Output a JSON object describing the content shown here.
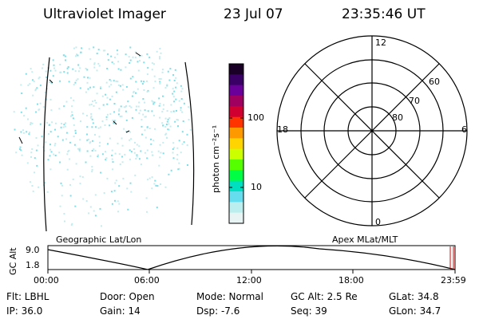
{
  "header": {
    "instrument": "Ultraviolet Imager",
    "date": "23 Jul 07",
    "time": "23:35:46 UT"
  },
  "colorbar": {
    "unit_label": "photon cm⁻²s⁻¹",
    "ticks": [
      "100",
      "10"
    ],
    "colors": [
      "#1a0026",
      "#3a0066",
      "#6a0099",
      "#a00060",
      "#d00030",
      "#ff3300",
      "#ff9900",
      "#ffd400",
      "#ccff00",
      "#55ff00",
      "#00ff44",
      "#00e0c0",
      "#66ddee",
      "#bbeeee",
      "#e8f4f4"
    ]
  },
  "polar": {
    "hour_labels": {
      "top": "12",
      "left": "18",
      "right": "6",
      "bottom": "0"
    },
    "lat_labels": [
      "60",
      "70",
      "80"
    ]
  },
  "altitude_plot": {
    "y_label": "GC Alt",
    "y_ticks": [
      "9.0",
      "1.8"
    ],
    "left_title": "Geographic Lat/Lon",
    "right_title": "Apex  MLat/MLT",
    "x_ticks": [
      "00:00",
      "06:00",
      "12:00",
      "18:00",
      "23:59"
    ]
  },
  "status": {
    "row1": [
      {
        "key": "flt",
        "text": "Flt: LBHL"
      },
      {
        "key": "door",
        "text": "Door: Open"
      },
      {
        "key": "mode",
        "text": "Mode: Normal"
      },
      {
        "key": "gcalt",
        "text": "GC Alt: 2.5 Re"
      },
      {
        "key": "glat",
        "text": "GLat:  34.8"
      }
    ],
    "row2": [
      {
        "key": "ip",
        "text": "IP: 36.0"
      },
      {
        "key": "gain",
        "text": "Gain: 14"
      },
      {
        "key": "dsp",
        "text": "Dsp:    -7.6"
      },
      {
        "key": "seq",
        "text": "Seq: 39"
      },
      {
        "key": "glon",
        "text": "GLon:  34.7"
      }
    ]
  }
}
